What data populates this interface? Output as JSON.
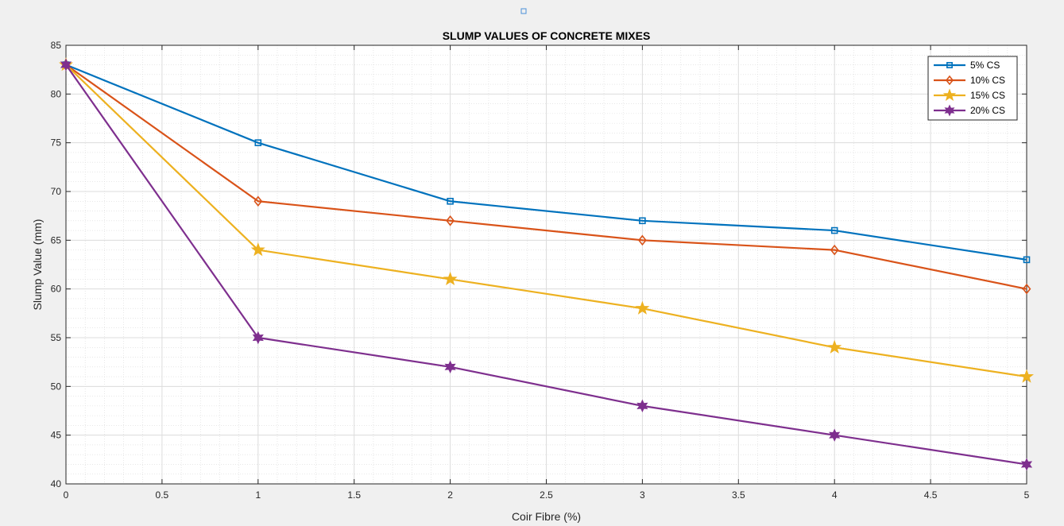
{
  "chart_data": {
    "type": "line",
    "title": "SLUMP VALUES OF CONCRETE MIXES",
    "xlabel": "Coir Fibre (%)",
    "ylabel": "Slump Value (mm)",
    "x": [
      0,
      1,
      2,
      3,
      4,
      5
    ],
    "xlim": [
      0,
      5
    ],
    "ylim": [
      40,
      85
    ],
    "xticks": [
      "0",
      "0.5",
      "1",
      "1.5",
      "2",
      "2.5",
      "3",
      "3.5",
      "4",
      "4.5",
      "5"
    ],
    "yticks": [
      "40",
      "45",
      "50",
      "55",
      "60",
      "65",
      "70",
      "75",
      "80",
      "85"
    ],
    "grid": true,
    "minor_grid": true,
    "legend_position": "top-right",
    "series": [
      {
        "name": "5% CS",
        "values": [
          83,
          75,
          69,
          67,
          66,
          63
        ],
        "color": "#0072BD",
        "marker": "square"
      },
      {
        "name": "10% CS",
        "values": [
          83,
          69,
          67,
          65,
          64,
          60
        ],
        "color": "#D95319",
        "marker": "diamond"
      },
      {
        "name": "15% CS",
        "values": [
          83,
          64,
          61,
          58,
          54,
          51
        ],
        "color": "#EDB120",
        "marker": "pentagram"
      },
      {
        "name": "20% CS",
        "values": [
          83,
          55,
          52,
          48,
          45,
          42
        ],
        "color": "#7E2F8E",
        "marker": "hexagram"
      }
    ]
  }
}
